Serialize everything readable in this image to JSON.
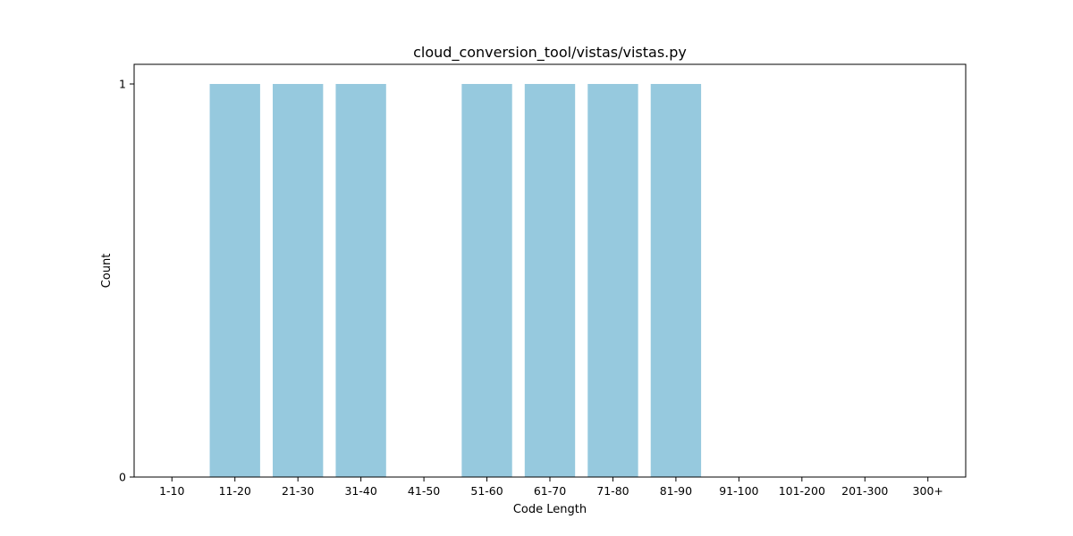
{
  "chart_data": {
    "type": "bar",
    "title": "cloud_conversion_tool/vistas/vistas.py",
    "xlabel": "Code Length",
    "ylabel": "Count",
    "categories": [
      "1-10",
      "11-20",
      "21-30",
      "31-40",
      "41-50",
      "51-60",
      "61-70",
      "71-80",
      "81-90",
      "91-100",
      "101-200",
      "201-300",
      "300+"
    ],
    "values": [
      0,
      1,
      1,
      1,
      0,
      1,
      1,
      1,
      1,
      0,
      0,
      0,
      0
    ],
    "ylim": [
      0,
      1.05
    ],
    "yticks": [
      0,
      1
    ],
    "grid": false,
    "bar_color": "#96c9de"
  }
}
